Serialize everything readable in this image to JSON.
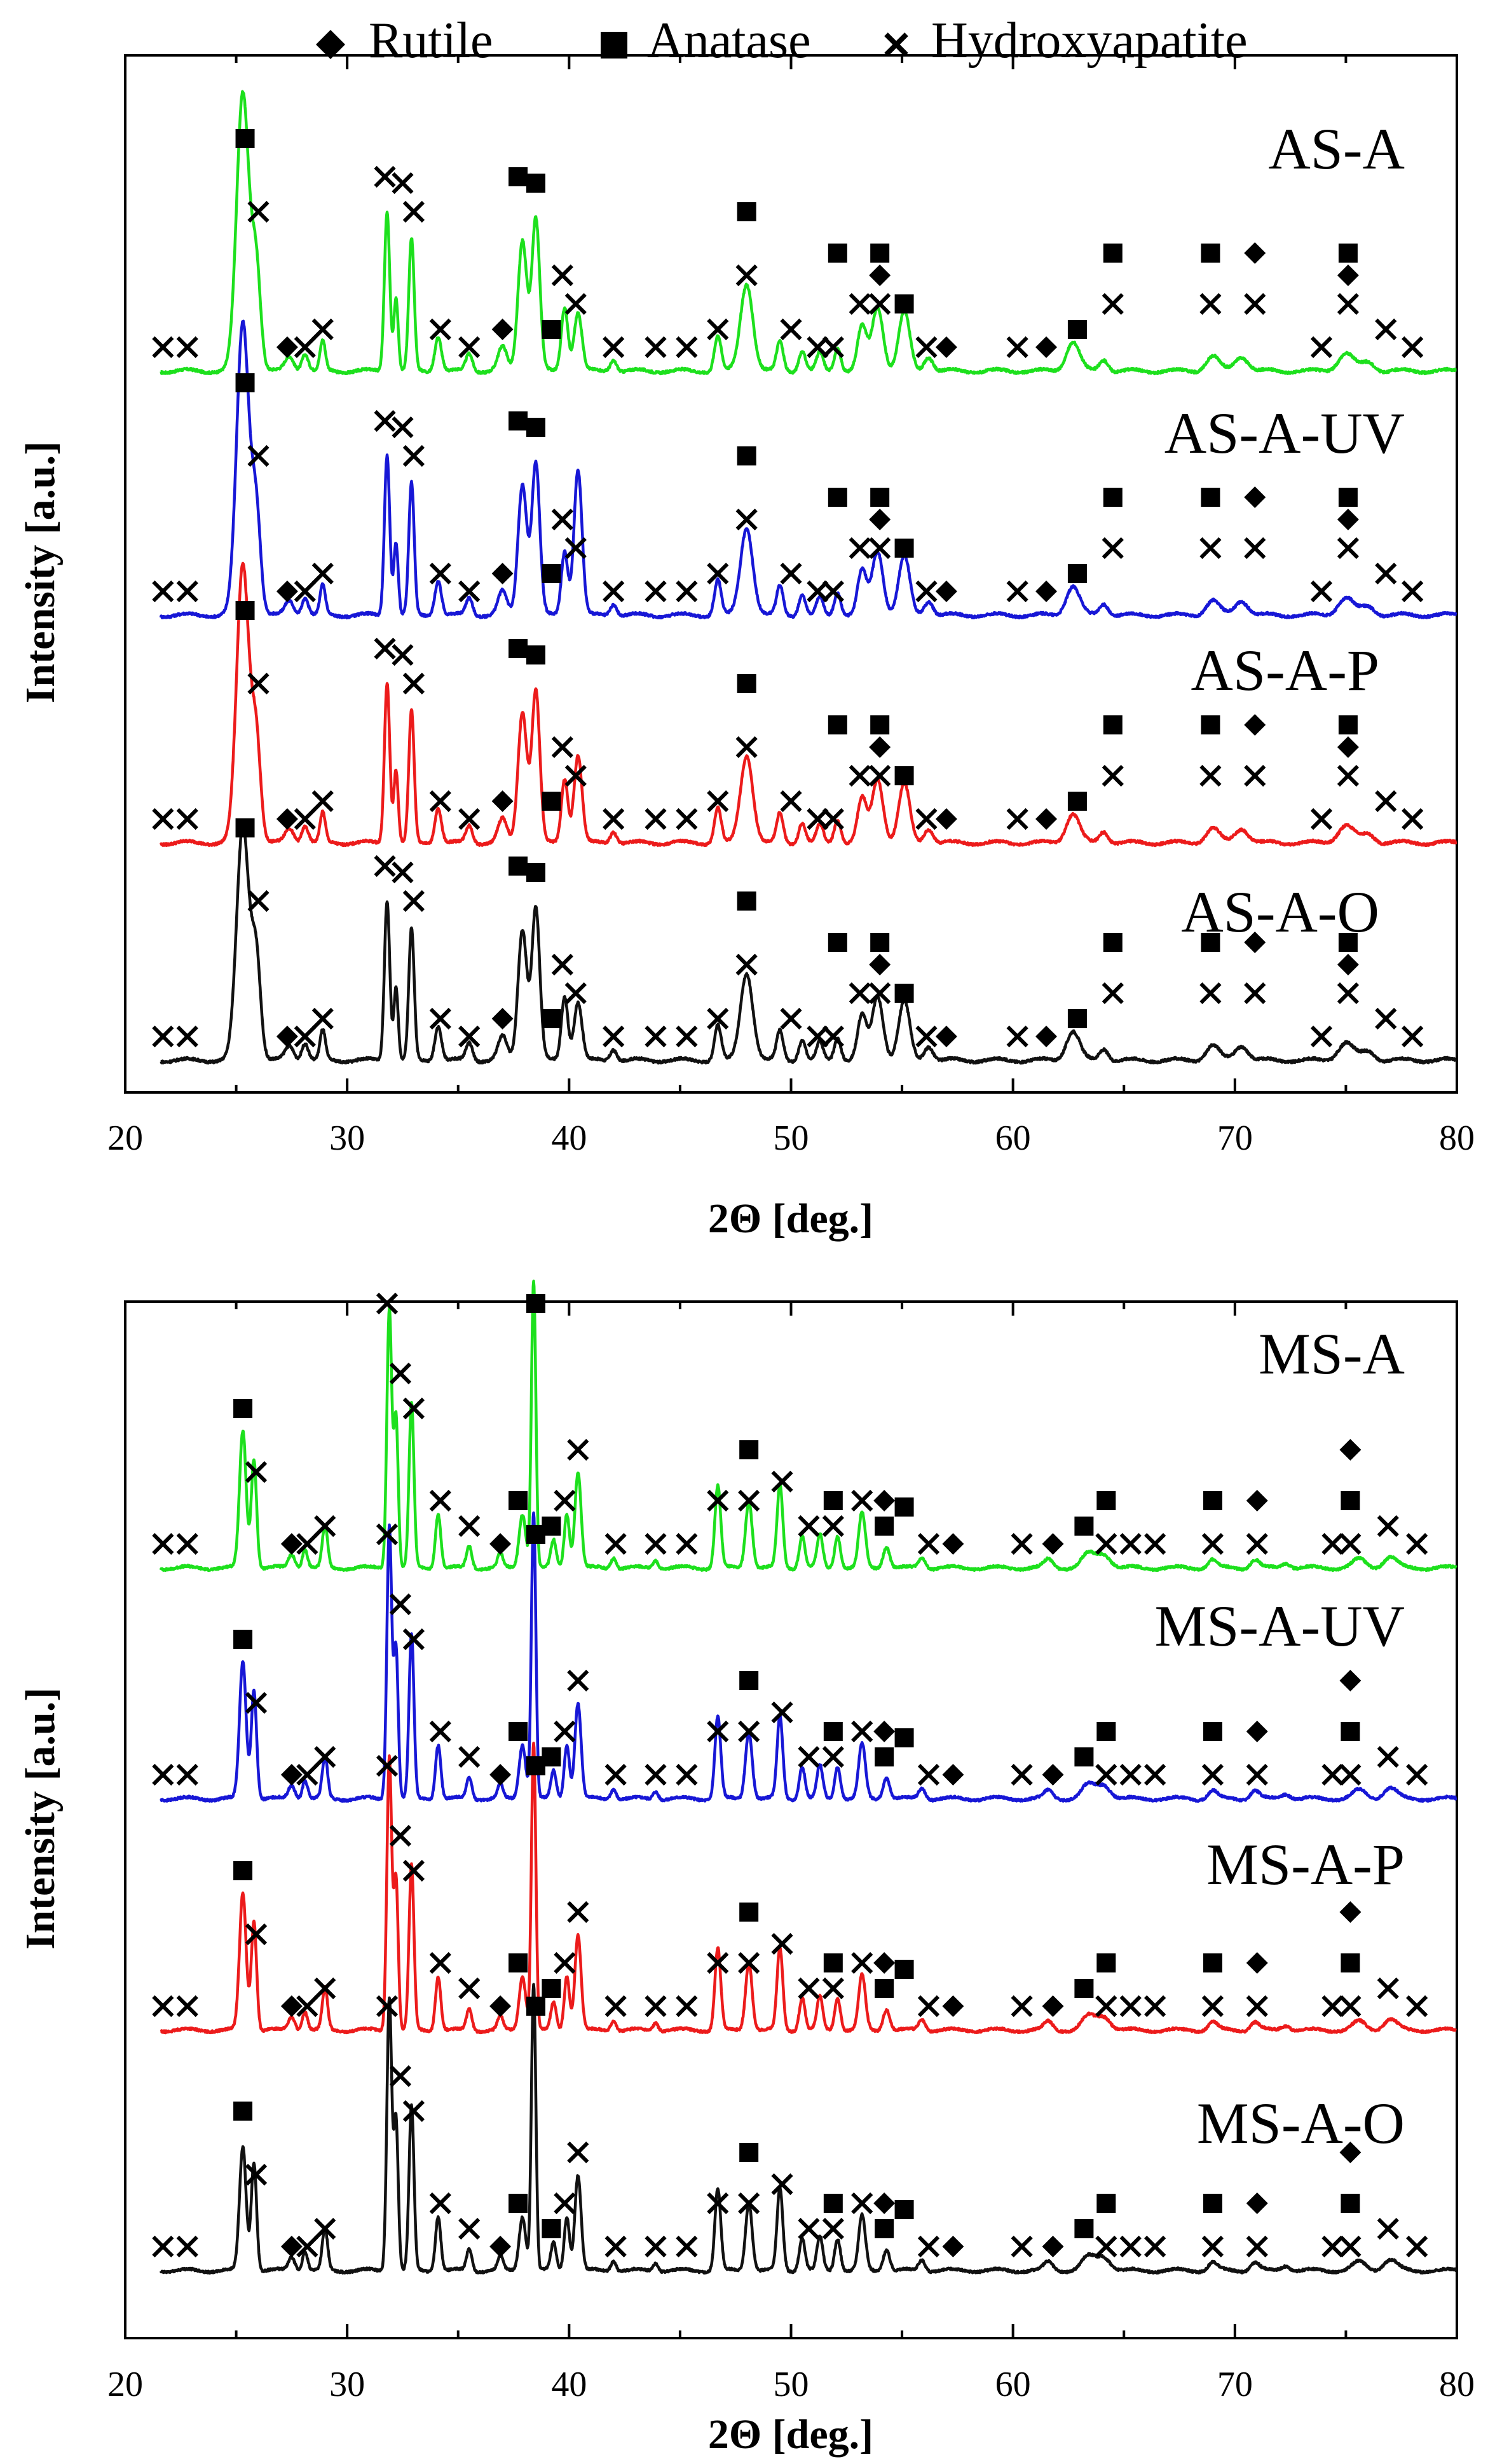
{
  "legend": {
    "entries": [
      {
        "symbol": "diamond",
        "label": "Rutile"
      },
      {
        "symbol": "square",
        "label": "Anatase"
      },
      {
        "symbol": "cross",
        "label": "Hydroxyapatite"
      }
    ]
  },
  "colors": {
    "green": "#1de01d",
    "blue": "#1717d6",
    "red": "#ec1b1b",
    "black": "#111111",
    "axis": "#000000"
  },
  "chart_data": [
    {
      "type": "line",
      "panel": "top",
      "xlabel": "2Θ [deg.]",
      "ylabel": "Intensity [a.u.]",
      "xlim": [
        20,
        80
      ],
      "xticks": [
        20,
        30,
        40,
        50,
        60,
        70,
        80
      ],
      "yticks_shown": false,
      "profile": "AS",
      "series": [
        {
          "name": "AS-A",
          "color_key": "green"
        },
        {
          "name": "AS-A-UV",
          "color_key": "blue"
        },
        {
          "name": "AS-A-P",
          "color_key": "red"
        },
        {
          "name": "AS-A-O",
          "color_key": "black"
        }
      ],
      "peaks": [
        {
          "pos": 25.3,
          "h": 0.95,
          "w": 0.28
        },
        {
          "pos": 25.9,
          "h": 0.35,
          "w": 0.2
        },
        {
          "pos": 27.4,
          "h": 0.05,
          "w": 0.2
        },
        {
          "pos": 28.1,
          "h": 0.06,
          "w": 0.15
        },
        {
          "pos": 28.9,
          "h": 0.1,
          "w": 0.12
        },
        {
          "pos": 31.8,
          "h": 0.55,
          "w": 0.12
        },
        {
          "pos": 32.2,
          "h": 0.25,
          "w": 0.1
        },
        {
          "pos": 32.9,
          "h": 0.45,
          "w": 0.12
        },
        {
          "pos": 34.1,
          "h": 0.12,
          "w": 0.15
        },
        {
          "pos": 35.5,
          "h": 0.06,
          "w": 0.15
        },
        {
          "pos": 37.0,
          "h": 0.08,
          "w": 0.2
        },
        {
          "pos": 37.9,
          "h": 0.45,
          "w": 0.2
        },
        {
          "pos": 38.5,
          "h": 0.52,
          "w": 0.18
        },
        {
          "pos": 39.8,
          "h": 0.22,
          "w": 0.15
        },
        {
          "pos": 40.4,
          "h": 0.2,
          "w": 0.18
        },
        {
          "pos": 42.0,
          "h": 0.04,
          "w": 0.15
        },
        {
          "pos": 46.7,
          "h": 0.12,
          "w": 0.15
        },
        {
          "pos": 48.0,
          "h": 0.3,
          "w": 0.28
        },
        {
          "pos": 49.5,
          "h": 0.1,
          "w": 0.15
        },
        {
          "pos": 50.5,
          "h": 0.07,
          "w": 0.15
        },
        {
          "pos": 51.3,
          "h": 0.06,
          "w": 0.15
        },
        {
          "pos": 52.1,
          "h": 0.08,
          "w": 0.15
        },
        {
          "pos": 53.2,
          "h": 0.15,
          "w": 0.2
        },
        {
          "pos": 53.9,
          "h": 0.22,
          "w": 0.25
        },
        {
          "pos": 55.1,
          "h": 0.2,
          "w": 0.25
        },
        {
          "pos": 56.2,
          "h": 0.05,
          "w": 0.2
        },
        {
          "pos": 62.7,
          "h": 0.1,
          "w": 0.3
        },
        {
          "pos": 64.1,
          "h": 0.04,
          "w": 0.2
        },
        {
          "pos": 69.0,
          "h": 0.05,
          "w": 0.3
        },
        {
          "pos": 70.3,
          "h": 0.05,
          "w": 0.3
        },
        {
          "pos": 75.0,
          "h": 0.06,
          "w": 0.35
        },
        {
          "pos": 76.0,
          "h": 0.03,
          "w": 0.3
        }
      ],
      "series_adjust": {
        "AS-A-UV": [
          {
            "pos": 40.4,
            "h": 0.5
          },
          {
            "pos": 25.3,
            "h": 1.0
          }
        ],
        "AS-A-P": [
          {
            "pos": 40.4,
            "h": 0.3
          }
        ],
        "AS-A-O": [
          {
            "pos": 25.3,
            "h": 0.8
          }
        ]
      },
      "markers": [
        {
          "x": 21.7,
          "sym": "cross",
          "row": "low"
        },
        {
          "x": 22.8,
          "sym": "cross",
          "row": "low"
        },
        {
          "x": 25.4,
          "sym": "square",
          "row": "peak"
        },
        {
          "x": 26.0,
          "sym": "cross",
          "row": "mid1"
        },
        {
          "x": 27.3,
          "sym": "diamond",
          "row": "low"
        },
        {
          "x": 28.1,
          "sym": "cross",
          "row": "low"
        },
        {
          "x": 28.9,
          "sym": "cross",
          "row": "low2"
        },
        {
          "x": 31.7,
          "sym": "cross",
          "row": "mid2"
        },
        {
          "x": 32.5,
          "sym": "cross",
          "row": "mid2b"
        },
        {
          "x": 33.0,
          "sym": "cross",
          "row": "mid1"
        },
        {
          "x": 34.2,
          "sym": "cross",
          "row": "low2"
        },
        {
          "x": 35.5,
          "sym": "cross",
          "row": "low"
        },
        {
          "x": 37.0,
          "sym": "diamond",
          "row": "low2"
        },
        {
          "x": 37.7,
          "sym": "square",
          "row": "mid2"
        },
        {
          "x": 38.5,
          "sym": "square",
          "row": "mid2b"
        },
        {
          "x": 39.2,
          "sym": "square",
          "row": "low2"
        },
        {
          "x": 39.7,
          "sym": "cross",
          "row": "mid0"
        },
        {
          "x": 40.3,
          "sym": "cross",
          "row": "low3"
        },
        {
          "x": 42.0,
          "sym": "cross",
          "row": "low"
        },
        {
          "x": 43.9,
          "sym": "cross",
          "row": "low"
        },
        {
          "x": 45.3,
          "sym": "cross",
          "row": "low"
        },
        {
          "x": 46.7,
          "sym": "cross",
          "row": "low2"
        },
        {
          "x": 48.0,
          "sym": "square",
          "row": "mid1"
        },
        {
          "x": 48.0,
          "sym": "cross",
          "row": "mid0"
        },
        {
          "x": 50.0,
          "sym": "cross",
          "row": "low2"
        },
        {
          "x": 51.2,
          "sym": "cross",
          "row": "low"
        },
        {
          "x": 51.9,
          "sym": "cross",
          "row": "low"
        },
        {
          "x": 52.1,
          "sym": "square",
          "row": "mid0b"
        },
        {
          "x": 53.1,
          "sym": "cross",
          "row": "low3"
        },
        {
          "x": 54.0,
          "sym": "diamond",
          "row": "mid0"
        },
        {
          "x": 54.0,
          "sym": "square",
          "row": "mid0b"
        },
        {
          "x": 54.0,
          "sym": "cross",
          "row": "low3"
        },
        {
          "x": 55.1,
          "sym": "square",
          "row": "low3"
        },
        {
          "x": 56.1,
          "sym": "cross",
          "row": "low"
        },
        {
          "x": 57.0,
          "sym": "diamond",
          "row": "low"
        },
        {
          "x": 60.2,
          "sym": "cross",
          "row": "low"
        },
        {
          "x": 61.5,
          "sym": "diamond",
          "row": "low"
        },
        {
          "x": 62.9,
          "sym": "square",
          "row": "low2"
        },
        {
          "x": 64.5,
          "sym": "square",
          "row": "mid0b"
        },
        {
          "x": 64.5,
          "sym": "cross",
          "row": "low3"
        },
        {
          "x": 68.9,
          "sym": "square",
          "row": "mid0b"
        },
        {
          "x": 68.9,
          "sym": "cross",
          "row": "low3"
        },
        {
          "x": 70.9,
          "sym": "diamond",
          "row": "mid0b"
        },
        {
          "x": 70.9,
          "sym": "cross",
          "row": "low3"
        },
        {
          "x": 73.9,
          "sym": "cross",
          "row": "low"
        },
        {
          "x": 75.1,
          "sym": "diamond",
          "row": "mid0"
        },
        {
          "x": 75.1,
          "sym": "square",
          "row": "mid0b"
        },
        {
          "x": 75.1,
          "sym": "cross",
          "row": "low3"
        },
        {
          "x": 76.8,
          "sym": "cross",
          "row": "low2"
        },
        {
          "x": 78.0,
          "sym": "cross",
          "row": "low"
        }
      ]
    },
    {
      "type": "line",
      "panel": "bottom",
      "xlabel": "2Θ [deg.]",
      "ylabel": "Intensity [a.u.]",
      "xlim": [
        20,
        80
      ],
      "xticks": [
        20,
        30,
        40,
        50,
        60,
        70,
        80
      ],
      "yticks_shown": false,
      "profile": "MS",
      "series": [
        {
          "name": "MS-A",
          "color_key": "green"
        },
        {
          "name": "MS-A-UV",
          "color_key": "blue"
        },
        {
          "name": "MS-A-P",
          "color_key": "red"
        },
        {
          "name": "MS-A-O",
          "color_key": "black"
        }
      ],
      "peaks": [
        {
          "pos": 25.3,
          "h": 0.5,
          "w": 0.15
        },
        {
          "pos": 25.8,
          "h": 0.4,
          "w": 0.12
        },
        {
          "pos": 27.5,
          "h": 0.05,
          "w": 0.15
        },
        {
          "pos": 28.1,
          "h": 0.07,
          "w": 0.12
        },
        {
          "pos": 29.0,
          "h": 0.15,
          "w": 0.12
        },
        {
          "pos": 31.9,
          "h": 1.0,
          "w": 0.11
        },
        {
          "pos": 32.2,
          "h": 0.55,
          "w": 0.1
        },
        {
          "pos": 32.9,
          "h": 0.6,
          "w": 0.11
        },
        {
          "pos": 34.1,
          "h": 0.2,
          "w": 0.12
        },
        {
          "pos": 35.5,
          "h": 0.08,
          "w": 0.12
        },
        {
          "pos": 36.9,
          "h": 0.05,
          "w": 0.12
        },
        {
          "pos": 37.9,
          "h": 0.2,
          "w": 0.15
        },
        {
          "pos": 38.4,
          "h": 1.05,
          "w": 0.1
        },
        {
          "pos": 39.3,
          "h": 0.1,
          "w": 0.12
        },
        {
          "pos": 39.9,
          "h": 0.2,
          "w": 0.12
        },
        {
          "pos": 40.4,
          "h": 0.35,
          "w": 0.14
        },
        {
          "pos": 42.0,
          "h": 0.04,
          "w": 0.12
        },
        {
          "pos": 43.9,
          "h": 0.03,
          "w": 0.12
        },
        {
          "pos": 46.7,
          "h": 0.3,
          "w": 0.13
        },
        {
          "pos": 48.1,
          "h": 0.25,
          "w": 0.15
        },
        {
          "pos": 49.5,
          "h": 0.3,
          "w": 0.13
        },
        {
          "pos": 50.5,
          "h": 0.12,
          "w": 0.13
        },
        {
          "pos": 51.3,
          "h": 0.12,
          "w": 0.13
        },
        {
          "pos": 52.1,
          "h": 0.12,
          "w": 0.13
        },
        {
          "pos": 53.2,
          "h": 0.2,
          "w": 0.15
        },
        {
          "pos": 54.3,
          "h": 0.08,
          "w": 0.15
        },
        {
          "pos": 55.9,
          "h": 0.04,
          "w": 0.15
        },
        {
          "pos": 61.6,
          "h": 0.03,
          "w": 0.2
        },
        {
          "pos": 63.4,
          "h": 0.05,
          "w": 0.3
        },
        {
          "pos": 64.1,
          "h": 0.05,
          "w": 0.3
        },
        {
          "pos": 69.0,
          "h": 0.03,
          "w": 0.2
        },
        {
          "pos": 70.9,
          "h": 0.03,
          "w": 0.2
        },
        {
          "pos": 72.3,
          "h": 0.02,
          "w": 0.2
        },
        {
          "pos": 75.6,
          "h": 0.03,
          "w": 0.3
        },
        {
          "pos": 77.0,
          "h": 0.04,
          "w": 0.3
        }
      ],
      "series_adjust": {
        "MS-A": [
          {
            "pos": 31.9,
            "h": 0.95
          }
        ],
        "MS-A-O": [
          {
            "pos": 25.3,
            "h": 0.45
          }
        ]
      },
      "markers": [
        {
          "x": 21.7,
          "sym": "cross",
          "row": "low"
        },
        {
          "x": 22.8,
          "sym": "cross",
          "row": "low"
        },
        {
          "x": 25.3,
          "sym": "square",
          "row": "mid1"
        },
        {
          "x": 25.9,
          "sym": "cross",
          "row": "mid0"
        },
        {
          "x": 27.5,
          "sym": "diamond",
          "row": "low"
        },
        {
          "x": 28.2,
          "sym": "cross",
          "row": "low"
        },
        {
          "x": 29.0,
          "sym": "cross",
          "row": "low2"
        },
        {
          "x": 31.8,
          "sym": "cross",
          "row": "top"
        },
        {
          "x": 32.4,
          "sym": "cross",
          "row": "mid2"
        },
        {
          "x": 33.0,
          "sym": "cross",
          "row": "mid1"
        },
        {
          "x": 34.2,
          "sym": "cross",
          "row": "low3"
        },
        {
          "x": 35.5,
          "sym": "cross",
          "row": "low2"
        },
        {
          "x": 36.9,
          "sym": "diamond",
          "row": "low"
        },
        {
          "x": 37.7,
          "sym": "square",
          "row": "low3"
        },
        {
          "x": 38.5,
          "sym": "square",
          "row": "top"
        },
        {
          "x": 39.2,
          "sym": "square",
          "row": "low2"
        },
        {
          "x": 39.8,
          "sym": "cross",
          "row": "low3"
        },
        {
          "x": 40.4,
          "sym": "cross",
          "row": "mid0b"
        },
        {
          "x": 42.1,
          "sym": "cross",
          "row": "low"
        },
        {
          "x": 43.9,
          "sym": "cross",
          "row": "low"
        },
        {
          "x": 45.3,
          "sym": "cross",
          "row": "low"
        },
        {
          "x": 46.7,
          "sym": "cross",
          "row": "low3"
        },
        {
          "x": 48.1,
          "sym": "square",
          "row": "mid0b"
        },
        {
          "x": 48.1,
          "sym": "cross",
          "row": "low3"
        },
        {
          "x": 49.6,
          "sym": "cross",
          "row": "low3b"
        },
        {
          "x": 50.8,
          "sym": "cross",
          "row": "low2"
        },
        {
          "x": 51.9,
          "sym": "square",
          "row": "low3"
        },
        {
          "x": 51.9,
          "sym": "cross",
          "row": "low2"
        },
        {
          "x": 53.2,
          "sym": "cross",
          "row": "low3"
        },
        {
          "x": 54.2,
          "sym": "diamond",
          "row": "low3"
        },
        {
          "x": 54.2,
          "sym": "square",
          "row": "low2"
        },
        {
          "x": 55.1,
          "sym": "square",
          "row": "low2b"
        },
        {
          "x": 56.2,
          "sym": "cross",
          "row": "low"
        },
        {
          "x": 57.3,
          "sym": "diamond",
          "row": "low"
        },
        {
          "x": 60.4,
          "sym": "cross",
          "row": "low"
        },
        {
          "x": 61.8,
          "sym": "diamond",
          "row": "low"
        },
        {
          "x": 63.2,
          "sym": "square",
          "row": "low2"
        },
        {
          "x": 64.2,
          "sym": "square",
          "row": "low3"
        },
        {
          "x": 64.2,
          "sym": "cross",
          "row": "low"
        },
        {
          "x": 65.3,
          "sym": "cross",
          "row": "low"
        },
        {
          "x": 66.4,
          "sym": "cross",
          "row": "low"
        },
        {
          "x": 69.0,
          "sym": "square",
          "row": "low3"
        },
        {
          "x": 69.0,
          "sym": "cross",
          "row": "low"
        },
        {
          "x": 71.0,
          "sym": "diamond",
          "row": "low3"
        },
        {
          "x": 71.0,
          "sym": "cross",
          "row": "low"
        },
        {
          "x": 74.4,
          "sym": "cross",
          "row": "low"
        },
        {
          "x": 75.2,
          "sym": "diamond",
          "row": "mid0b"
        },
        {
          "x": 75.2,
          "sym": "square",
          "row": "low3"
        },
        {
          "x": 75.2,
          "sym": "cross",
          "row": "low"
        },
        {
          "x": 76.9,
          "sym": "cross",
          "row": "low2"
        },
        {
          "x": 78.2,
          "sym": "cross",
          "row": "low"
        }
      ]
    }
  ]
}
